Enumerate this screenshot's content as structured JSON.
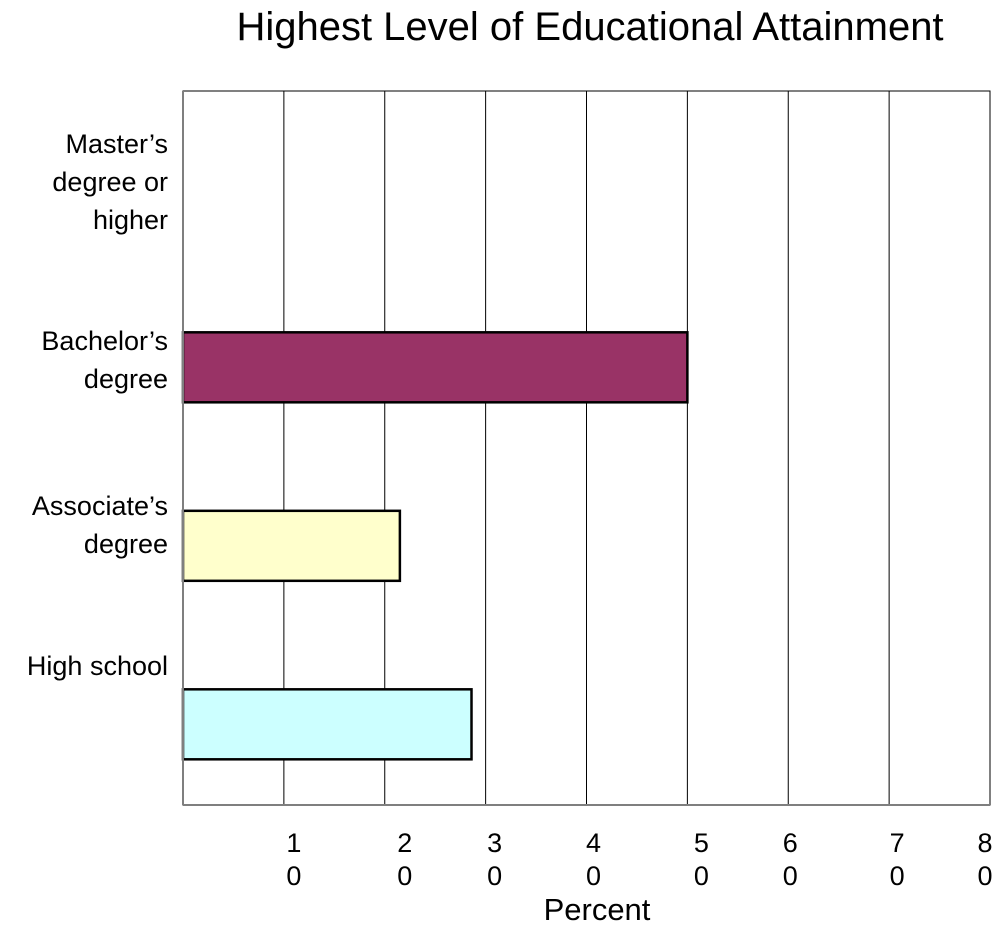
{
  "chart_data": {
    "type": "bar",
    "orientation": "horizontal",
    "title": "Highest Level of Educational Attainment",
    "xlabel": "Percent",
    "ylabel": "",
    "xlim": [
      0,
      80
    ],
    "xticks": [
      {
        "value": 10,
        "label": [
          "1",
          "0"
        ]
      },
      {
        "value": 20,
        "label": [
          "2",
          "0"
        ]
      },
      {
        "value": 30,
        "label": [
          "3",
          "0"
        ]
      },
      {
        "value": 40,
        "label": [
          "4",
          "0"
        ]
      },
      {
        "value": 50,
        "label": [
          "5",
          "0"
        ]
      },
      {
        "value": 60,
        "label": [
          "6",
          "0"
        ]
      },
      {
        "value": 70,
        "label": [
          "7",
          "0"
        ]
      },
      {
        "value": 80,
        "label": [
          "8",
          "0"
        ]
      }
    ],
    "grid": true,
    "categories": [
      {
        "label": [
          "Master’s",
          "degree or",
          "higher"
        ],
        "value": 0,
        "color": "#ffffff"
      },
      {
        "label": [
          "Bachelor’s",
          "degree"
        ],
        "value": 50,
        "color": "#993366"
      },
      {
        "label": [
          "Associate’s",
          "degree"
        ],
        "value": 21.5,
        "color": "#ffffcc"
      },
      {
        "label": [
          "High school"
        ],
        "value": 28.6,
        "color": "#ccffff"
      }
    ]
  }
}
